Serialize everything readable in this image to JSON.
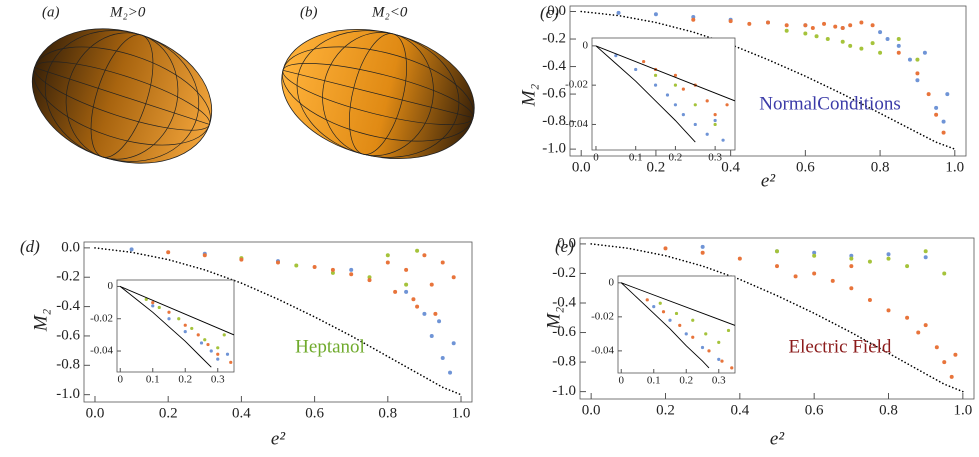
{
  "shapes": [
    {
      "label": "(a)",
      "title": "M₂>0"
    },
    {
      "label": "(b)",
      "title": "M₂<0"
    }
  ],
  "chart_data": [
    {
      "type": "scatter",
      "label": "(c)",
      "xlabel": "e²",
      "ylabel": "M₂",
      "annotation": {
        "text": "NormalConditions",
        "color": "#3b3ba8"
      },
      "xlim": [
        -0.03,
        1.03
      ],
      "ylim": [
        -1.05,
        0.04
      ],
      "xticks": [
        {
          "value": 0,
          "label": "0.0"
        },
        0.2,
        0.4,
        0.6,
        0.8,
        {
          "value": 1,
          "label": "1.0"
        }
      ],
      "yticks": [
        {
          "value": 0,
          "label": "0.0"
        },
        -0.2,
        -0.4,
        -0.6,
        -0.8,
        {
          "value": -1,
          "label": "-1.0"
        }
      ],
      "series": [
        {
          "mode": "dotted",
          "color": "#000000",
          "x": [
            0,
            0.1,
            0.2,
            0.3,
            0.4,
            0.5,
            0.6,
            0.7,
            0.8,
            0.9,
            0.95,
            1.0
          ],
          "values": [
            0,
            -0.03,
            -0.08,
            -0.15,
            -0.24,
            -0.35,
            -0.47,
            -0.6,
            -0.74,
            -0.88,
            -0.95,
            -1.0
          ]
        },
        {
          "mode": "points",
          "color": "#6f94d6",
          "x": [
            0.1,
            0.2,
            0.3,
            0.4,
            0.5,
            0.6,
            0.7,
            0.8,
            0.82,
            0.85,
            0.88,
            0.9,
            0.92,
            0.95,
            0.97,
            0.98
          ],
          "values": [
            -0.01,
            -0.02,
            -0.04,
            -0.06,
            -0.08,
            -0.1,
            -0.12,
            -0.15,
            -0.2,
            -0.25,
            -0.35,
            -0.5,
            -0.3,
            -0.7,
            -0.8,
            -0.6
          ]
        },
        {
          "mode": "points",
          "color": "#a5c33b",
          "x": [
            0.55,
            0.6,
            0.63,
            0.66,
            0.7,
            0.72,
            0.75,
            0.78,
            0.8,
            0.85,
            0.9
          ],
          "values": [
            -0.14,
            -0.16,
            -0.18,
            -0.2,
            -0.22,
            -0.25,
            -0.27,
            -0.23,
            -0.3,
            -0.2,
            -0.35
          ]
        },
        {
          "mode": "points",
          "color": "#e8743b",
          "x": [
            0.3,
            0.4,
            0.45,
            0.5,
            0.55,
            0.6,
            0.62,
            0.65,
            0.68,
            0.7,
            0.72,
            0.75,
            0.78,
            0.85,
            0.9,
            0.93,
            0.95,
            0.97
          ],
          "values": [
            -0.06,
            -0.07,
            -0.09,
            -0.08,
            -0.1,
            -0.1,
            -0.12,
            -0.09,
            -0.11,
            -0.12,
            -0.1,
            -0.08,
            -0.1,
            -0.3,
            -0.45,
            -0.6,
            -0.75,
            -0.88
          ]
        }
      ],
      "inset": {
        "xlim": [
          -0.01,
          0.35
        ],
        "ylim": [
          -0.053,
          0.004
        ],
        "xticks": [
          0,
          0.1,
          0.2,
          0.3
        ],
        "yticks": [
          0,
          -0.02,
          -0.04
        ],
        "series": [
          {
            "mode": "points",
            "color": "#6f94d6",
            "x": [
              0.05,
              0.1,
              0.15,
              0.18,
              0.2,
              0.22,
              0.25,
              0.28,
              0.3,
              0.32
            ],
            "values": [
              -0.005,
              -0.012,
              -0.02,
              -0.025,
              -0.03,
              -0.035,
              -0.04,
              -0.045,
              -0.038,
              -0.048
            ]
          },
          {
            "mode": "points",
            "color": "#e8743b",
            "x": [
              0.12,
              0.15,
              0.2,
              0.22,
              0.25,
              0.28,
              0.3,
              0.33
            ],
            "values": [
              -0.008,
              -0.012,
              -0.015,
              -0.022,
              -0.02,
              -0.028,
              -0.035,
              -0.03
            ]
          },
          {
            "mode": "points",
            "color": "#a5c33b",
            "x": [
              0.15,
              0.2,
              0.25,
              0.3
            ],
            "values": [
              -0.015,
              -0.02,
              -0.03,
              -0.04
            ]
          },
          {
            "mode": "line",
            "color": "#000000",
            "x": [
              0,
              0.35
            ],
            "values": [
              0,
              -0.028
            ]
          },
          {
            "mode": "line",
            "color": "#000000",
            "x": [
              0,
              0.05,
              0.1,
              0.15,
              0.2,
              0.25
            ],
            "values": [
              0,
              -0.009,
              -0.018,
              -0.028,
              -0.038,
              -0.049
            ]
          }
        ]
      }
    },
    {
      "type": "scatter",
      "label": "(d)",
      "xlabel": "e²",
      "ylabel": "M₂",
      "annotation": {
        "text": "Heptanol",
        "color": "#6faa2c"
      },
      "xlim": [
        -0.03,
        1.03
      ],
      "ylim": [
        -1.05,
        0.04
      ],
      "xticks": [
        {
          "value": 0,
          "label": "0.0"
        },
        0.2,
        0.4,
        0.6,
        0.8,
        {
          "value": 1,
          "label": "1.0"
        }
      ],
      "yticks": [
        {
          "value": 0,
          "label": "0.0"
        },
        -0.2,
        -0.4,
        -0.6,
        -0.8,
        {
          "value": -1,
          "label": "-1.0"
        }
      ],
      "series": [
        {
          "mode": "dotted",
          "color": "#000000",
          "x": [
            0,
            0.1,
            0.2,
            0.3,
            0.4,
            0.5,
            0.6,
            0.7,
            0.8,
            0.9,
            0.95,
            1.0
          ],
          "values": [
            0,
            -0.03,
            -0.08,
            -0.15,
            -0.24,
            -0.35,
            -0.47,
            -0.6,
            -0.74,
            -0.88,
            -0.95,
            -1.0
          ]
        },
        {
          "mode": "points",
          "color": "#6f94d6",
          "x": [
            0.1,
            0.3,
            0.5,
            0.7,
            0.85,
            0.9,
            0.92,
            0.94,
            0.95,
            0.97,
            0.98
          ],
          "values": [
            -0.01,
            -0.04,
            -0.09,
            -0.15,
            -0.3,
            -0.45,
            -0.6,
            -0.5,
            -0.75,
            -0.85,
            -0.65
          ]
        },
        {
          "mode": "points",
          "color": "#a5c33b",
          "x": [
            0.4,
            0.55,
            0.65,
            0.75,
            0.8,
            0.85,
            0.88
          ],
          "values": [
            -0.07,
            -0.12,
            -0.17,
            -0.2,
            -0.05,
            -0.25,
            -0.02
          ]
        },
        {
          "mode": "points",
          "color": "#e8743b",
          "x": [
            0.2,
            0.3,
            0.4,
            0.5,
            0.6,
            0.65,
            0.7,
            0.75,
            0.8,
            0.82,
            0.85,
            0.88,
            0.9,
            0.92,
            0.95,
            0.98,
            0.87,
            0.93
          ],
          "values": [
            -0.03,
            -0.05,
            -0.08,
            -0.1,
            -0.13,
            -0.15,
            -0.18,
            -0.22,
            -0.1,
            -0.3,
            -0.15,
            -0.4,
            -0.05,
            -0.25,
            -0.1,
            -0.2,
            -0.35,
            -0.45
          ]
        }
      ],
      "inset": {
        "xlim": [
          -0.01,
          0.35
        ],
        "ylim": [
          -0.053,
          0.004
        ],
        "xticks": [
          0,
          0.1,
          0.2,
          0.3
        ],
        "yticks": [
          0,
          -0.02,
          -0.04
        ],
        "series": [
          {
            "mode": "points",
            "color": "#6f94d6",
            "x": [
              0.1,
              0.15,
              0.2,
              0.25,
              0.28,
              0.3,
              0.33
            ],
            "values": [
              -0.012,
              -0.02,
              -0.028,
              -0.035,
              -0.04,
              -0.045,
              -0.042
            ]
          },
          {
            "mode": "points",
            "color": "#a5c33b",
            "x": [
              0.08,
              0.12,
              0.18,
              0.22,
              0.26,
              0.3,
              0.32
            ],
            "values": [
              -0.008,
              -0.013,
              -0.02,
              -0.026,
              -0.033,
              -0.038,
              -0.03
            ]
          },
          {
            "mode": "points",
            "color": "#e8743b",
            "x": [
              0.1,
              0.15,
              0.2,
              0.24,
              0.27,
              0.3,
              0.34
            ],
            "values": [
              -0.01,
              -0.016,
              -0.024,
              -0.03,
              -0.036,
              -0.042,
              -0.047
            ]
          },
          {
            "mode": "line",
            "color": "#000000",
            "x": [
              0,
              0.35
            ],
            "values": [
              0,
              -0.03
            ]
          },
          {
            "mode": "line",
            "color": "#000000",
            "x": [
              0,
              0.05,
              0.1,
              0.15,
              0.2,
              0.25,
              0.28
            ],
            "values": [
              0,
              -0.008,
              -0.016,
              -0.025,
              -0.034,
              -0.044,
              -0.05
            ]
          }
        ]
      }
    },
    {
      "type": "scatter",
      "label": "(e)",
      "xlabel": "e²",
      "ylabel": "M₂",
      "annotation": {
        "text": "Electric Field",
        "color": "#8b1a1a"
      },
      "xlim": [
        -0.03,
        1.03
      ],
      "ylim": [
        -1.05,
        0.04
      ],
      "xticks": [
        {
          "value": 0,
          "label": "0.0"
        },
        0.2,
        0.4,
        0.6,
        0.8,
        {
          "value": 1,
          "label": "1.0"
        }
      ],
      "yticks": [
        {
          "value": 0,
          "label": "0.0"
        },
        -0.2,
        -0.4,
        -0.6,
        -0.8,
        {
          "value": -1,
          "label": "-1.0"
        }
      ],
      "series": [
        {
          "mode": "dotted",
          "color": "#000000",
          "x": [
            0,
            0.1,
            0.2,
            0.3,
            0.4,
            0.5,
            0.6,
            0.7,
            0.8,
            0.9,
            0.95,
            1.0
          ],
          "values": [
            0,
            -0.03,
            -0.08,
            -0.15,
            -0.24,
            -0.35,
            -0.47,
            -0.6,
            -0.74,
            -0.88,
            -0.95,
            -1.0
          ]
        },
        {
          "mode": "points",
          "color": "#6f94d6",
          "x": [
            0.3,
            0.5,
            0.6,
            0.7,
            0.8,
            0.9
          ],
          "values": [
            -0.02,
            -0.05,
            -0.06,
            -0.08,
            -0.07,
            -0.09
          ]
        },
        {
          "mode": "points",
          "color": "#a5c33b",
          "x": [
            0.5,
            0.6,
            0.7,
            0.75,
            0.8,
            0.85,
            0.9,
            0.95
          ],
          "values": [
            -0.05,
            -0.08,
            -0.1,
            -0.12,
            -0.1,
            -0.15,
            -0.05,
            -0.2
          ]
        },
        {
          "mode": "points",
          "color": "#e8743b",
          "x": [
            0.2,
            0.3,
            0.4,
            0.5,
            0.6,
            0.65,
            0.7,
            0.75,
            0.8,
            0.85,
            0.88,
            0.9,
            0.93,
            0.95,
            0.97,
            0.98,
            0.55,
            0.7
          ],
          "values": [
            -0.03,
            -0.06,
            -0.1,
            -0.15,
            -0.2,
            -0.25,
            -0.3,
            -0.38,
            -0.45,
            -0.5,
            -0.6,
            -0.55,
            -0.7,
            -0.8,
            -0.9,
            -0.75,
            -0.22,
            -0.15
          ]
        }
      ],
      "inset": {
        "xlim": [
          -0.01,
          0.35
        ],
        "ylim": [
          -0.053,
          0.004
        ],
        "xticks": [
          0,
          0.1,
          0.2,
          0.3
        ],
        "yticks": [
          0,
          -0.02,
          -0.04
        ],
        "series": [
          {
            "mode": "points",
            "color": "#6f94d6",
            "x": [
              0.1,
              0.15,
              0.2,
              0.25,
              0.3
            ],
            "values": [
              -0.014,
              -0.022,
              -0.03,
              -0.038,
              -0.045
            ]
          },
          {
            "mode": "points",
            "color": "#a5c33b",
            "x": [
              0.12,
              0.17,
              0.22,
              0.26,
              0.3,
              0.33
            ],
            "values": [
              -0.012,
              -0.018,
              -0.022,
              -0.03,
              -0.035,
              -0.028
            ]
          },
          {
            "mode": "points",
            "color": "#e8743b",
            "x": [
              0.08,
              0.13,
              0.18,
              0.22,
              0.27,
              0.31,
              0.34
            ],
            "values": [
              -0.01,
              -0.017,
              -0.025,
              -0.032,
              -0.04,
              -0.046,
              -0.05
            ]
          },
          {
            "mode": "line",
            "color": "#000000",
            "x": [
              0,
              0.35
            ],
            "values": [
              0,
              -0.025
            ]
          },
          {
            "mode": "line",
            "color": "#000000",
            "x": [
              0,
              0.05,
              0.1,
              0.15,
              0.2,
              0.25,
              0.27
            ],
            "values": [
              0,
              -0.009,
              -0.018,
              -0.027,
              -0.037,
              -0.046,
              -0.05
            ]
          }
        ]
      }
    }
  ]
}
